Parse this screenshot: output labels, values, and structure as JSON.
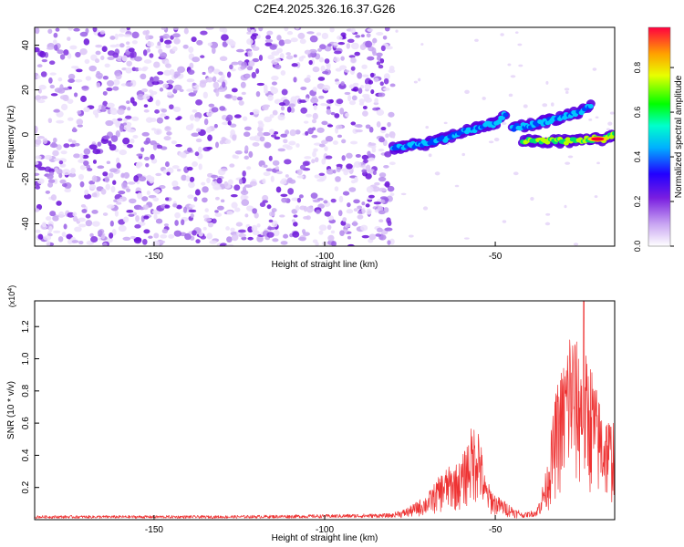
{
  "chart_data": [
    {
      "type": "heatmap",
      "title": "C2E4.2025.326.16.37.G26",
      "xlabel": "Height of straight line (km)",
      "ylabel": "Frequency (Hz)",
      "xlim": [
        -185,
        -15
      ],
      "ylim": [
        -50,
        48
      ],
      "x_ticks": [
        -150,
        -100,
        -50
      ],
      "x_tick_labels": [
        "-150",
        "-100",
        "-50"
      ],
      "y_ticks": [
        -40,
        -20,
        0,
        20,
        40
      ],
      "y_tick_labels": [
        "-40",
        "-20",
        "0",
        "20",
        "40"
      ],
      "noise_region_x": [
        -185,
        -80
      ],
      "signal_tracks": [
        {
          "name": "rising track",
          "points": [
            [
              -80,
              -6
            ],
            [
              -75,
              -5
            ],
            [
              -70,
              -4
            ],
            [
              -65,
              -2
            ],
            [
              -60,
              1
            ],
            [
              -55,
              3
            ],
            [
              -50,
              5
            ],
            [
              -47,
              9
            ]
          ]
        },
        {
          "name": "upper branch",
          "points": [
            [
              -45,
              3
            ],
            [
              -40,
              4
            ],
            [
              -35,
              6
            ],
            [
              -30,
              8
            ],
            [
              -25,
              10
            ],
            [
              -22,
              13
            ]
          ]
        },
        {
          "name": "flat branch",
          "points": [
            [
              -42,
              -3
            ],
            [
              -38,
              -3
            ],
            [
              -34,
              -3
            ],
            [
              -30,
              -3
            ],
            [
              -26,
              -3
            ],
            [
              -22,
              -2
            ],
            [
              -18,
              -2
            ],
            [
              -15,
              0
            ]
          ]
        }
      ],
      "peak": {
        "x": -20,
        "y": -2,
        "amplitude": 0.95
      },
      "colorbar": {
        "label": "Normalized spectral amplitude",
        "range": [
          0.0,
          0.98
        ],
        "ticks": [
          0.0,
          0.2,
          0.4,
          0.6,
          0.8
        ],
        "tick_labels": [
          "0.0",
          "0.2",
          "0.4",
          "0.6",
          "0.8"
        ]
      }
    },
    {
      "type": "line",
      "xlabel": "Height of straight line (km)",
      "ylabel": "SNR (10 * v/v)",
      "multiplier": "(x10",
      "multiplier_exponent": "4",
      "multiplier_close": ")",
      "xlim": [
        -185,
        -15
      ],
      "ylim": [
        0,
        1.36
      ],
      "x_ticks": [
        -150,
        -100,
        -50
      ],
      "x_tick_labels": [
        "-150",
        "-100",
        "-50"
      ],
      "y_ticks": [
        0.2,
        0.4,
        0.6,
        0.8,
        1.0,
        1.2
      ],
      "y_tick_labels": [
        "0.2",
        "0.4",
        "0.6",
        "0.8",
        "1.0",
        "1.2"
      ],
      "line_color": "#ee3333",
      "envelope_points": [
        [
          -185,
          0.02
        ],
        [
          -130,
          0.02
        ],
        [
          -100,
          0.025
        ],
        [
          -80,
          0.03
        ],
        [
          -75,
          0.08
        ],
        [
          -70,
          0.15
        ],
        [
          -65,
          0.3
        ],
        [
          -60,
          0.35
        ],
        [
          -57,
          0.55
        ],
        [
          -55,
          0.6
        ],
        [
          -53,
          0.25
        ],
        [
          -50,
          0.15
        ],
        [
          -45,
          0.08
        ],
        [
          -42,
          0.03
        ],
        [
          -38,
          0.05
        ],
        [
          -35,
          0.3
        ],
        [
          -32,
          0.8
        ],
        [
          -30,
          0.95
        ],
        [
          -28,
          1.2
        ],
        [
          -26,
          1.05
        ],
        [
          -24,
          1.0
        ],
        [
          -22,
          0.95
        ],
        [
          -20,
          0.75
        ],
        [
          -18,
          0.65
        ],
        [
          -16,
          0.6
        ],
        [
          -15,
          0.65
        ]
      ],
      "peak": {
        "x": -24,
        "y": 1.36
      }
    }
  ]
}
